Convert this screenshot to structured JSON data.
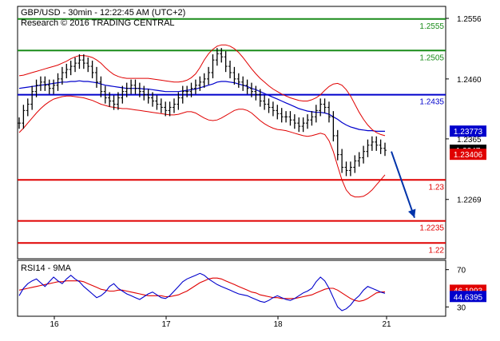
{
  "chart_data": {
    "type": "line",
    "title": "GBP/USD - 30min - 12:22:45 AM (UTC+2)",
    "subtitle": "Research © 2016 TRADING CENTRAL",
    "x_tick_labels": [
      "16",
      "17",
      "18",
      "21"
    ],
    "price_panel": {
      "y_ticks": [
        "1.2556",
        "1.2460",
        "1.2365",
        "1.2269"
      ],
      "ylim": [
        1.2175,
        1.2575
      ],
      "levels": [
        {
          "label": "1.2555",
          "value": 1.2555,
          "color": "#1a8c1a"
        },
        {
          "label": "1.2505",
          "value": 1.2505,
          "color": "#1a8c1a"
        },
        {
          "label": "1.2435",
          "value": 1.2435,
          "color": "#0000cc"
        },
        {
          "label": "1.23",
          "value": 1.23,
          "color": "#e00000"
        },
        {
          "label": "1.2235",
          "value": 1.2235,
          "color": "#e00000"
        },
        {
          "label": "1.22",
          "value": 1.22,
          "color": "#e00000"
        }
      ],
      "value_boxes": [
        {
          "label": "1.23773",
          "value": 1.23773,
          "color": "#0000cc"
        },
        {
          "label": "1.2347",
          "value": 1.2347,
          "color": "#000000"
        },
        {
          "label": "1.23406",
          "value": 1.23406,
          "color": "#e00000"
        }
      ],
      "series": [
        {
          "kind": "price_bars",
          "color": "#000000",
          "values": [
            1.239,
            1.241,
            1.242,
            1.244,
            1.245,
            1.2455,
            1.245,
            1.2445,
            1.245,
            1.246,
            1.247,
            1.2475,
            1.248,
            1.2485,
            1.249,
            1.2485,
            1.248,
            1.247,
            1.2455,
            1.244,
            1.243,
            1.2425,
            1.242,
            1.243,
            1.244,
            1.2445,
            1.245,
            1.2445,
            1.244,
            1.2435,
            1.243,
            1.2425,
            1.242,
            1.2415,
            1.241,
            1.2415,
            1.242,
            1.243,
            1.244,
            1.244,
            1.2445,
            1.245,
            1.2455,
            1.246,
            1.247,
            1.249,
            1.25,
            1.2495,
            1.248,
            1.247,
            1.246,
            1.2455,
            1.245,
            1.2445,
            1.244,
            1.2435,
            1.2425,
            1.242,
            1.2415,
            1.241,
            1.2405,
            1.24,
            1.24,
            1.2395,
            1.239,
            1.2385,
            1.239,
            1.2395,
            1.24,
            1.241,
            1.242,
            1.2415,
            1.24,
            1.237,
            1.234,
            1.232,
            1.2315,
            1.232,
            1.233,
            1.2335,
            1.2345,
            1.2355,
            1.236,
            1.2355,
            1.235,
            1.2347
          ]
        },
        {
          "kind": "moving_average",
          "color": "#0000cc",
          "values": [
            1.2445,
            1.2446,
            1.2447,
            1.2448,
            1.2449,
            1.245,
            1.2451,
            1.2452,
            1.2453,
            1.2454,
            1.2455,
            1.2455,
            1.2456,
            1.2456,
            1.2457,
            1.2456,
            1.2456,
            1.2455,
            1.2454,
            1.2452,
            1.245,
            1.2449,
            1.2448,
            1.2447,
            1.2446,
            1.2445,
            1.2445,
            1.2445,
            1.2445,
            1.2444,
            1.2444,
            1.2443,
            1.2442,
            1.2441,
            1.244,
            1.244,
            1.244,
            1.244,
            1.2441,
            1.2442,
            1.2443,
            1.2444,
            1.2446,
            1.2448,
            1.245,
            1.2452,
            1.2455,
            1.2456,
            1.2456,
            1.2455,
            1.2454,
            1.2452,
            1.245,
            1.2448,
            1.2445,
            1.2443,
            1.244,
            1.2437,
            1.2434,
            1.2431,
            1.2428,
            1.2425,
            1.2422,
            1.2419,
            1.2416,
            1.2413,
            1.2411,
            1.2409,
            1.2408,
            1.2407,
            1.2407,
            1.2406,
            1.2404,
            1.24,
            1.2396,
            1.2391,
            1.2387,
            1.2384,
            1.2382,
            1.238,
            1.2379,
            1.2378,
            1.2378,
            1.2377,
            1.2377,
            1.2377
          ]
        },
        {
          "kind": "bollinger_upper",
          "color": "#e00000",
          "values": [
            1.2465,
            1.2466,
            1.2468,
            1.247,
            1.2472,
            1.2474,
            1.2476,
            1.2478,
            1.248,
            1.2482,
            1.2485,
            1.2488,
            1.2492,
            1.2495,
            1.2497,
            1.2497,
            1.2496,
            1.2494,
            1.249,
            1.2485,
            1.2478,
            1.2472,
            1.2467,
            1.2464,
            1.2462,
            1.2461,
            1.2461,
            1.2461,
            1.2461,
            1.2461,
            1.2461,
            1.246,
            1.2459,
            1.2458,
            1.2457,
            1.2456,
            1.2455,
            1.2455,
            1.2456,
            1.2458,
            1.2462,
            1.2468,
            1.2478,
            1.249,
            1.25,
            1.2507,
            1.2512,
            1.2514,
            1.2514,
            1.2512,
            1.2508,
            1.2502,
            1.2494,
            1.2485,
            1.2476,
            1.2468,
            1.2461,
            1.2455,
            1.2449,
            1.2444,
            1.244,
            1.2436,
            1.2433,
            1.243,
            1.2428,
            1.2426,
            1.2425,
            1.2425,
            1.2427,
            1.243,
            1.2435,
            1.2442,
            1.2448,
            1.2452,
            1.2453,
            1.245,
            1.2443,
            1.2433,
            1.242,
            1.2407,
            1.2396,
            1.2387,
            1.238,
            1.2375,
            1.2372,
            1.237
          ]
        },
        {
          "kind": "bollinger_lower",
          "color": "#e00000",
          "values": [
            1.2375,
            1.2382,
            1.239,
            1.2398,
            1.2406,
            1.2413,
            1.2419,
            1.2424,
            1.2428,
            1.243,
            1.2432,
            1.2433,
            1.2433,
            1.2432,
            1.2431,
            1.243,
            1.2428,
            1.2426,
            1.2423,
            1.242,
            1.2418,
            1.2416,
            1.2415,
            1.2414,
            1.2413,
            1.2413,
            1.2412,
            1.2411,
            1.241,
            1.2409,
            1.2408,
            1.2407,
            1.2406,
            1.2405,
            1.2404,
            1.2403,
            1.2403,
            1.2404,
            1.2406,
            1.2408,
            1.2408,
            1.2406,
            1.2402,
            1.2398,
            1.2395,
            1.2394,
            1.2395,
            1.2398,
            1.2402,
            1.2406,
            1.241,
            1.2412,
            1.2412,
            1.241,
            1.2406,
            1.24,
            1.2394,
            1.2389,
            1.2385,
            1.2382,
            1.238,
            1.2379,
            1.2378,
            1.2376,
            1.2374,
            1.2372,
            1.237,
            1.2369,
            1.237,
            1.2372,
            1.2374,
            1.2372,
            1.2362,
            1.2345,
            1.2322,
            1.23,
            1.2284,
            1.2276,
            1.2273,
            1.2273,
            1.2274,
            1.2278,
            1.2284,
            1.2292,
            1.23,
            1.2308
          ]
        }
      ],
      "forecast_arrow": {
        "from": 1.2345,
        "to": 1.224,
        "color": "#0033aa"
      }
    },
    "rsi_panel": {
      "title": "RSI14 - 9MA",
      "y_ticks": [
        "70",
        "30"
      ],
      "ylim": [
        20,
        80
      ],
      "value_boxes": [
        {
          "label": "46.1993",
          "value": 46.1993,
          "color": "#e00000"
        },
        {
          "label": "44.6395",
          "value": 44.6395,
          "color": "#0000cc"
        }
      ],
      "series": [
        {
          "kind": "rsi",
          "color": "#0000cc",
          "values": [
            42,
            50,
            55,
            58,
            60,
            56,
            52,
            57,
            62,
            58,
            55,
            60,
            64,
            60,
            57,
            52,
            48,
            44,
            40,
            42,
            46,
            52,
            55,
            50,
            47,
            44,
            42,
            40,
            38,
            41,
            44,
            46,
            43,
            40,
            39,
            42,
            47,
            52,
            57,
            60,
            62,
            64,
            66,
            64,
            60,
            57,
            54,
            52,
            50,
            48,
            46,
            44,
            43,
            42,
            40,
            38,
            36,
            35,
            37,
            40,
            42,
            40,
            38,
            37,
            39,
            42,
            45,
            47,
            50,
            57,
            62,
            58,
            50,
            40,
            30,
            26,
            28,
            32,
            38,
            42,
            48,
            52,
            50,
            48,
            46,
            44.6
          ]
        },
        {
          "kind": "rsi_ma",
          "color": "#e00000",
          "values": [
            48,
            49,
            50,
            51,
            52,
            53,
            54,
            55,
            56,
            57,
            57,
            58,
            58,
            58,
            58,
            57,
            55,
            53,
            51,
            49,
            48,
            47,
            47,
            48,
            48,
            47,
            46,
            45,
            44,
            43,
            42,
            42,
            42,
            42,
            41,
            41,
            42,
            43,
            45,
            47,
            50,
            53,
            56,
            58,
            60,
            61,
            61,
            60,
            58,
            56,
            54,
            52,
            50,
            48,
            46,
            45,
            43,
            42,
            41,
            40,
            40,
            39,
            39,
            39,
            39,
            40,
            41,
            42,
            43,
            45,
            47,
            49,
            50,
            50,
            48,
            45,
            42,
            39,
            37,
            36,
            37,
            39,
            42,
            45,
            46,
            46.2
          ]
        }
      ]
    }
  }
}
